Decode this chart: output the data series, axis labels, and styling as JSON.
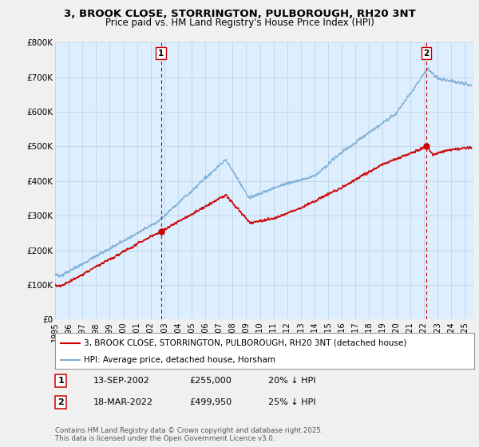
{
  "title": "3, BROOK CLOSE, STORRINGTON, PULBOROUGH, RH20 3NT",
  "subtitle": "Price paid vs. HM Land Registry's House Price Index (HPI)",
  "legend_label_red": "3, BROOK CLOSE, STORRINGTON, PULBOROUGH, RH20 3NT (detached house)",
  "legend_label_blue": "HPI: Average price, detached house, Horsham",
  "annotation1_date": "13-SEP-2002",
  "annotation1_price": "£255,000",
  "annotation1_hpi": "20% ↓ HPI",
  "annotation1_year": 2002.75,
  "annotation1_value": 255000,
  "annotation2_date": "18-MAR-2022",
  "annotation2_price": "£499,950",
  "annotation2_hpi": "25% ↓ HPI",
  "annotation2_year": 2022.2,
  "annotation2_value": 499950,
  "footer": "Contains HM Land Registry data © Crown copyright and database right 2025.\nThis data is licensed under the Open Government Licence v3.0.",
  "ylim": [
    0,
    800000
  ],
  "yticks": [
    0,
    100000,
    200000,
    300000,
    400000,
    500000,
    600000,
    700000,
    800000
  ],
  "ytick_labels": [
    "£0",
    "£100K",
    "£200K",
    "£300K",
    "£400K",
    "£500K",
    "£600K",
    "£700K",
    "£800K"
  ],
  "color_red": "#cc0000",
  "color_blue": "#7aadd4",
  "vline1_color": "#cc0000",
  "vline2_color": "#cc0000",
  "background_color": "#f0f0f0",
  "plot_bg_color": "#ddeeff",
  "title_fontsize": 9.5,
  "subtitle_fontsize": 8.5
}
